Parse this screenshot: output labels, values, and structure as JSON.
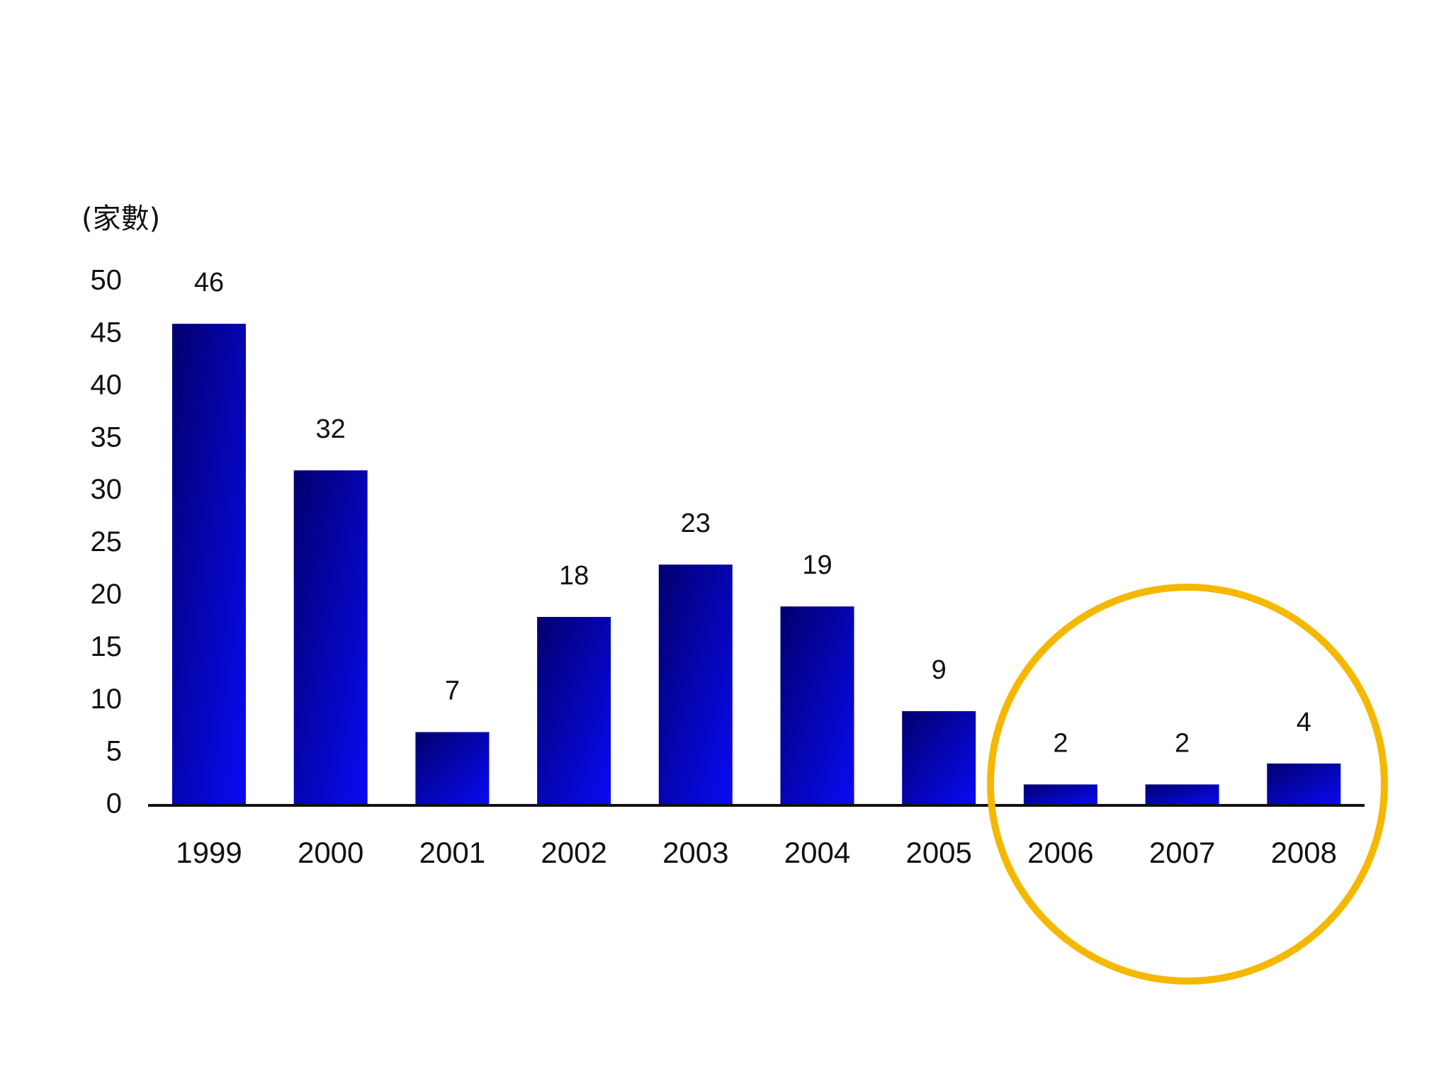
{
  "chart_data": {
    "type": "bar",
    "y_label": "(家數)",
    "categories": [
      "1999",
      "2000",
      "2001",
      "2002",
      "2003",
      "2004",
      "2005",
      "2006",
      "2007",
      "2008"
    ],
    "values": [
      46,
      32,
      7,
      18,
      23,
      19,
      9,
      2,
      2,
      4
    ],
    "color": "#0a0af5",
    "ylim": [
      0,
      50
    ],
    "yticks": [
      0,
      5,
      10,
      15,
      20,
      25,
      30,
      35,
      40,
      45,
      50
    ],
    "grid": false
  }
}
